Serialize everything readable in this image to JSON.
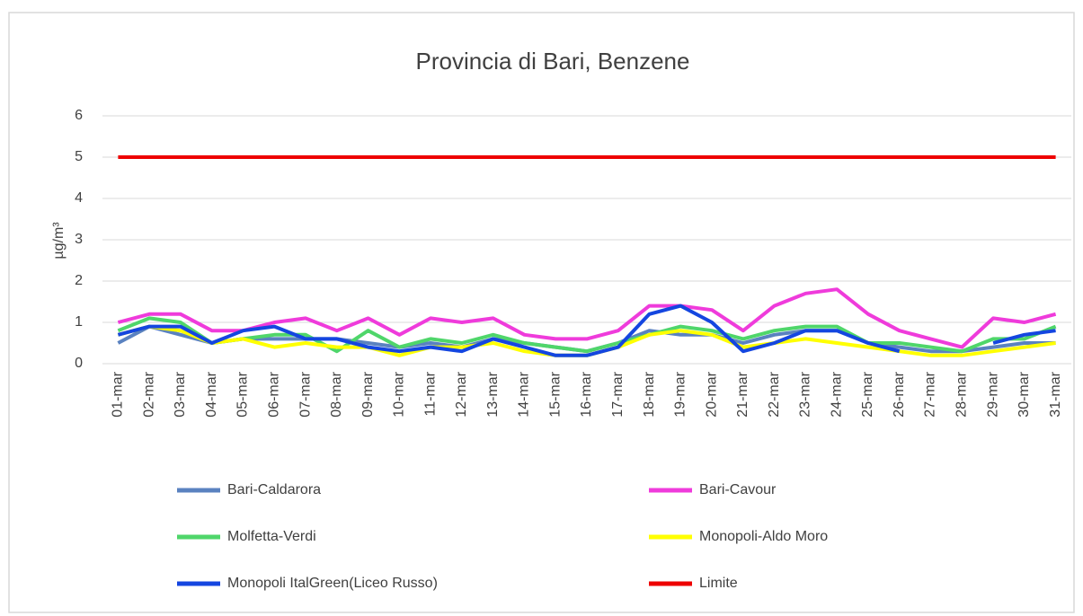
{
  "chart_data": {
    "type": "line",
    "title": "Provincia di Bari, Benzene",
    "ylabel": "µg/m³",
    "categories": [
      "01-mar",
      "02-mar",
      "03-mar",
      "04-mar",
      "05-mar",
      "06-mar",
      "07-mar",
      "08-mar",
      "09-mar",
      "10-mar",
      "11-mar",
      "12-mar",
      "13-mar",
      "14-mar",
      "15-mar",
      "16-mar",
      "17-mar",
      "18-mar",
      "19-mar",
      "20-mar",
      "21-mar",
      "22-mar",
      "23-mar",
      "24-mar",
      "25-mar",
      "26-mar",
      "27-mar",
      "28-mar",
      "29-mar",
      "30-mar",
      "31-mar"
    ],
    "series": [
      {
        "name": "Bari-Caldarora",
        "color": "#5a82c0",
        "values": [
          0.5,
          0.9,
          0.7,
          0.5,
          0.6,
          0.6,
          0.6,
          0.6,
          0.5,
          0.4,
          0.5,
          0.4,
          0.6,
          0.5,
          0.4,
          0.3,
          0.5,
          0.8,
          0.7,
          0.7,
          0.5,
          0.7,
          0.8,
          0.8,
          0.5,
          0.4,
          0.3,
          0.3,
          0.4,
          0.5,
          0.5
        ]
      },
      {
        "name": "Bari-Cavour",
        "color": "#ef3bdb",
        "values": [
          1.0,
          1.2,
          1.2,
          0.8,
          0.8,
          1.0,
          1.1,
          0.8,
          1.1,
          0.7,
          1.1,
          1.0,
          1.1,
          0.7,
          0.6,
          0.6,
          0.8,
          1.4,
          1.4,
          1.3,
          0.8,
          1.4,
          1.7,
          1.8,
          1.2,
          0.8,
          0.6,
          0.4,
          1.1,
          1.0,
          1.2
        ]
      },
      {
        "name": "Molfetta-Verdi",
        "color": "#4fd66a",
        "values": [
          0.8,
          1.1,
          1.0,
          0.5,
          0.6,
          0.7,
          0.7,
          0.3,
          0.8,
          0.4,
          0.6,
          0.5,
          0.7,
          0.5,
          0.4,
          0.3,
          0.5,
          0.7,
          0.9,
          0.8,
          0.6,
          0.8,
          0.9,
          0.9,
          0.5,
          0.5,
          0.4,
          0.3,
          0.6,
          0.6,
          0.9
        ]
      },
      {
        "name": "Monopoli-Aldo Moro",
        "color": "#ffff00",
        "values": [
          0.7,
          0.9,
          0.8,
          0.5,
          0.6,
          0.4,
          0.5,
          0.4,
          0.4,
          0.2,
          0.4,
          0.4,
          0.5,
          0.3,
          0.2,
          0.2,
          0.4,
          0.7,
          0.8,
          0.7,
          0.4,
          0.5,
          0.6,
          0.5,
          0.4,
          0.3,
          0.2,
          0.2,
          0.3,
          0.4,
          0.5
        ]
      },
      {
        "name": "Monopoli ItalGreen(Liceo Russo)",
        "color": "#1446e0",
        "values": [
          0.7,
          0.9,
          0.9,
          0.5,
          0.8,
          0.9,
          0.6,
          0.6,
          0.4,
          0.3,
          0.4,
          0.3,
          0.6,
          0.4,
          0.2,
          0.2,
          0.4,
          1.2,
          1.4,
          1.0,
          0.3,
          0.5,
          0.8,
          0.8,
          0.5,
          0.3,
          null,
          null,
          0.5,
          0.7,
          0.8
        ]
      },
      {
        "name": "Limite",
        "color": "#ee0000",
        "values": [
          5,
          5,
          5,
          5,
          5,
          5,
          5,
          5,
          5,
          5,
          5,
          5,
          5,
          5,
          5,
          5,
          5,
          5,
          5,
          5,
          5,
          5,
          5,
          5,
          5,
          5,
          5,
          5,
          5,
          5,
          5
        ]
      }
    ],
    "ylim": [
      0,
      6
    ],
    "yticks": [
      0,
      1,
      2,
      3,
      4,
      5,
      6
    ],
    "grid": true
  }
}
